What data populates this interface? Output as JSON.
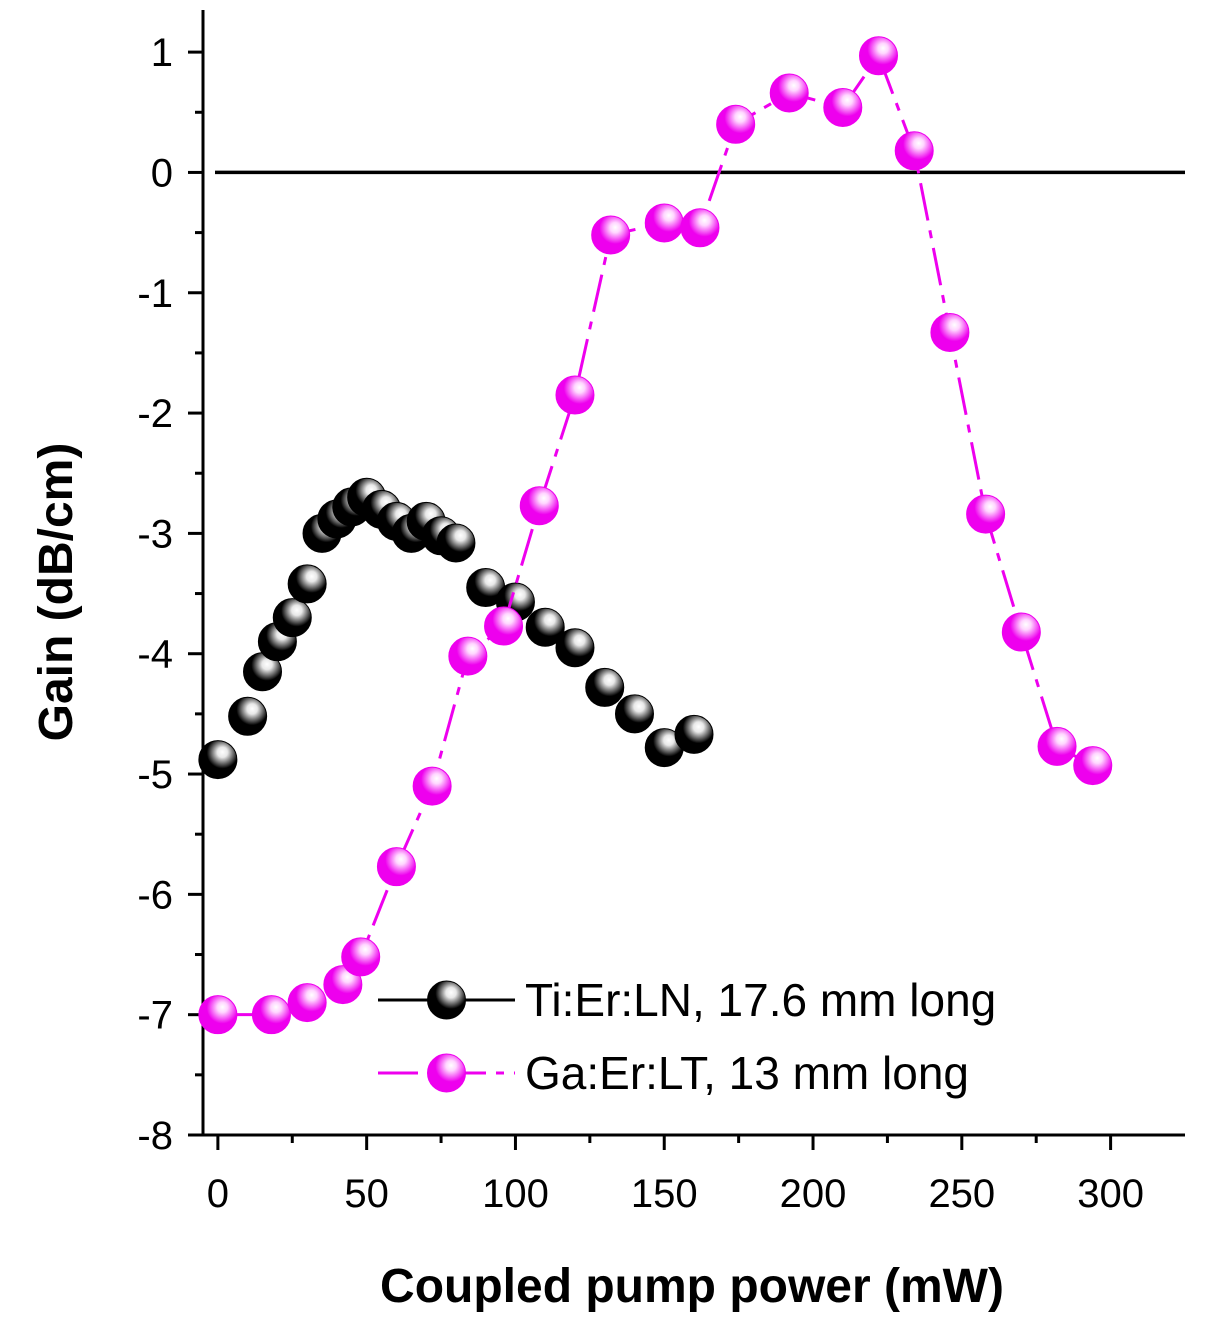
{
  "chart_data": {
    "type": "scatter",
    "title": "",
    "xlabel": "Coupled pump power (mW)",
    "ylabel": "Gain (dB/cm)",
    "xlim": [
      -5,
      325
    ],
    "ylim": [
      -8,
      1.35
    ],
    "xticks": [
      0,
      50,
      100,
      150,
      200,
      250,
      300
    ],
    "yticks": [
      1,
      0,
      -1,
      -2,
      -3,
      -4,
      -5,
      -6,
      -7,
      -8
    ],
    "xtick_labels": [
      "0",
      "50",
      "100",
      "150",
      "200",
      "250",
      "300"
    ],
    "ytick_labels": [
      "1",
      "0",
      "-1",
      "-2",
      "-3",
      "-4",
      "-5",
      "-6",
      "-7",
      "-8"
    ],
    "reference_line_y": 0,
    "legend_position": "bottom-right",
    "series": [
      {
        "name": "Ti:Er:LN, 17.6 mm long",
        "color": "#000000",
        "highlight": "#e8e8e8",
        "line": "solid",
        "connect": false,
        "x": [
          0,
          10,
          15,
          20,
          25,
          30,
          35,
          40,
          45,
          50,
          55,
          60,
          65,
          70,
          75,
          80,
          90,
          100,
          110,
          120,
          130,
          140,
          150,
          160
        ],
        "y": [
          -4.88,
          -4.52,
          -4.15,
          -3.9,
          -3.7,
          -3.42,
          -3.0,
          -2.88,
          -2.78,
          -2.7,
          -2.8,
          -2.9,
          -3.0,
          -2.9,
          -3.02,
          -3.08,
          -3.45,
          -3.57,
          -3.78,
          -3.95,
          -4.28,
          -4.5,
          -4.78,
          -4.67
        ]
      },
      {
        "name": "Ga:Er:LT, 13 mm long",
        "color": "#ee00ee",
        "highlight": "#ffd6ff",
        "line": "dash-dot",
        "connect": true,
        "x": [
          0,
          18,
          30,
          42,
          48,
          60,
          72,
          84,
          96,
          108,
          120,
          132,
          150,
          162,
          174,
          192,
          210,
          222,
          234,
          246,
          258,
          270,
          282,
          294
        ],
        "y": [
          -7.0,
          -7.0,
          -6.9,
          -6.75,
          -6.52,
          -5.77,
          -5.1,
          -4.02,
          -3.77,
          -2.77,
          -1.85,
          -0.52,
          -0.42,
          -0.46,
          0.4,
          0.66,
          0.54,
          0.97,
          0.18,
          -1.33,
          -2.84,
          -3.82,
          -4.77,
          -4.93
        ]
      }
    ]
  }
}
